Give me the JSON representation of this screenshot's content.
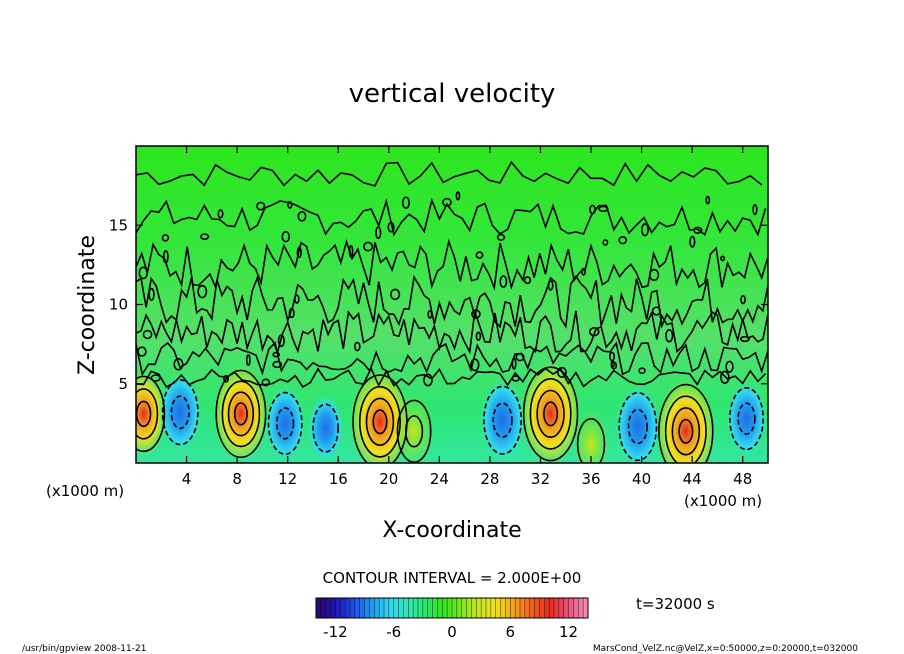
{
  "chart_data": {
    "type": "heatmap",
    "title": "vertical velocity",
    "xlabel": "X-coordinate",
    "ylabel": "Z-coordinate",
    "x_unit_left": "(x1000 m)",
    "x_unit_right": "(x1000 m)",
    "xlim": [
      0,
      50
    ],
    "ylim": [
      0,
      20
    ],
    "x_ticks": [
      4,
      8,
      12,
      16,
      20,
      24,
      28,
      32,
      36,
      40,
      44,
      48
    ],
    "y_ticks": [
      5,
      10,
      15
    ],
    "colorbar": {
      "range": [
        -14,
        14
      ],
      "ticks": [
        -12,
        -6,
        0,
        6,
        12
      ],
      "colors": [
        "#2a0a73",
        "#1f16b8",
        "#1f4fe6",
        "#1f9af0",
        "#33d6ee",
        "#33e6b8",
        "#2ee670",
        "#33e61e",
        "#7ae61e",
        "#c8e61e",
        "#f0e01e",
        "#f0a01e",
        "#f0601e",
        "#e62a1e",
        "#e6507a",
        "#f08aa8"
      ]
    },
    "contour_interval_label": "CONTOUR INTERVAL = 2.000E+00",
    "time_label": "t=32000 s",
    "cells": [
      {
        "x": 0.6,
        "z": 3.1,
        "w": 8
      },
      {
        "x": 3.5,
        "z": 3.2,
        "w": -6
      },
      {
        "x": 8.3,
        "z": 3.1,
        "w": 11
      },
      {
        "x": 11.8,
        "z": 2.5,
        "w": -5
      },
      {
        "x": 15.0,
        "z": 2.2,
        "w": -3
      },
      {
        "x": 19.3,
        "z": 2.6,
        "w": 13
      },
      {
        "x": 22.0,
        "z": 2.0,
        "w": 5
      },
      {
        "x": 29.0,
        "z": 2.7,
        "w": -7
      },
      {
        "x": 32.8,
        "z": 3.1,
        "w": 13
      },
      {
        "x": 36.0,
        "z": 1.2,
        "w": 4
      },
      {
        "x": 39.7,
        "z": 2.3,
        "w": -7
      },
      {
        "x": 43.5,
        "z": 2.0,
        "w": 13
      },
      {
        "x": 48.3,
        "z": 2.8,
        "w": -5
      }
    ]
  },
  "footer": {
    "left": "/usr/bin/gpview   2008-11-21",
    "right": "MarsCond_VelZ.nc@VelZ,x=0:50000,z=0:20000,t=032000"
  }
}
